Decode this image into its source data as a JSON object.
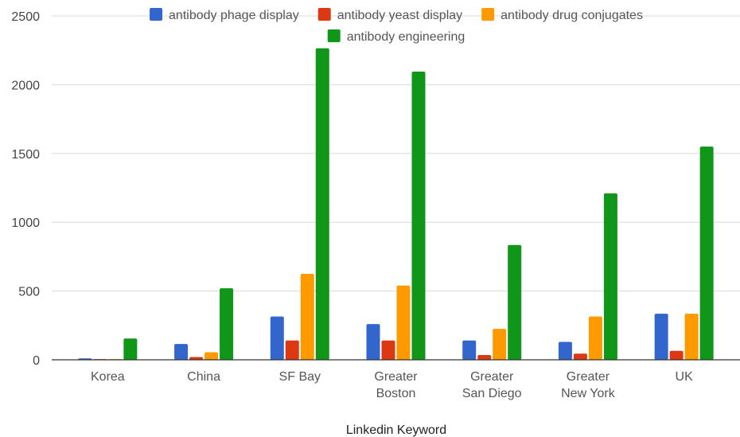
{
  "chart_data": {
    "type": "bar",
    "title": "",
    "xlabel": "Linkedin Keyword",
    "ylabel": "",
    "ylim": [
      0,
      2500
    ],
    "yticks": [
      0,
      500,
      1000,
      1500,
      2000,
      2500
    ],
    "grid": true,
    "legend_position": "top",
    "categories": [
      [
        "Korea"
      ],
      [
        "China"
      ],
      [
        "SF Bay"
      ],
      [
        "Greater",
        "Boston"
      ],
      [
        "Greater",
        "San Diego"
      ],
      [
        "Greater",
        "New York"
      ],
      [
        "UK"
      ]
    ],
    "series": [
      {
        "name": "antibody phage display",
        "color": "#3366cc",
        "values": [
          10,
          115,
          315,
          260,
          140,
          130,
          335
        ]
      },
      {
        "name": "antibody yeast display",
        "color": "#dc3912",
        "values": [
          5,
          20,
          140,
          140,
          35,
          45,
          65
        ]
      },
      {
        "name": "antibody drug conjugates",
        "color": "#ff9900",
        "values": [
          5,
          55,
          625,
          540,
          225,
          315,
          335
        ]
      },
      {
        "name": "antibody engineering",
        "color": "#109618",
        "values": [
          155,
          520,
          2265,
          2095,
          835,
          1210,
          1550
        ]
      }
    ]
  }
}
